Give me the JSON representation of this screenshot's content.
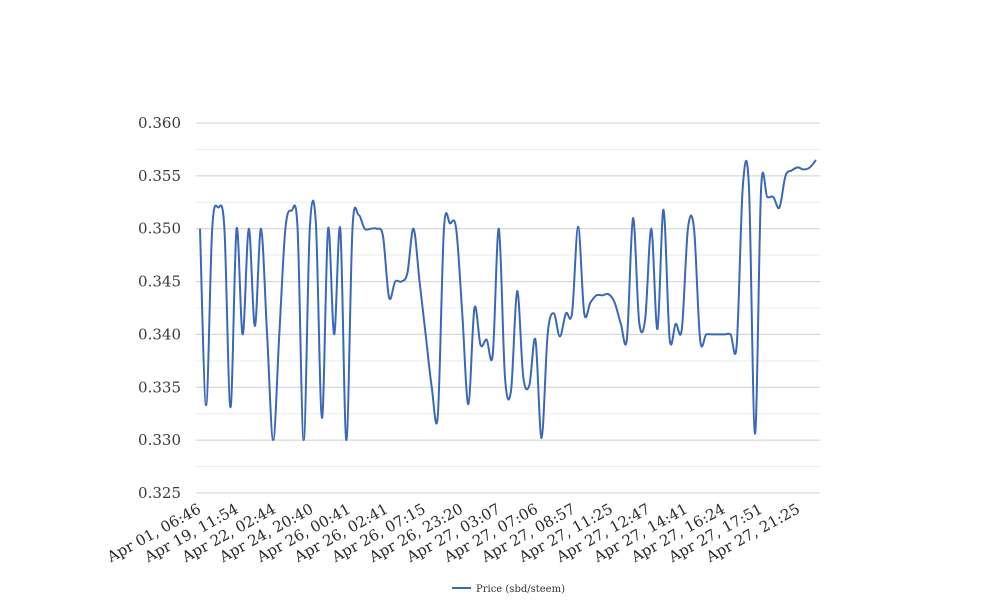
{
  "chart_data": {
    "type": "line",
    "title": "",
    "xlabel": "",
    "ylabel": "",
    "ylim": [
      0.325,
      0.36
    ],
    "y_ticks": [
      "0.325",
      "0.330",
      "0.335",
      "0.340",
      "0.345",
      "0.350",
      "0.355",
      "0.360"
    ],
    "grid": true,
    "legend_position": "bottom",
    "line_color": "#3a68b8",
    "x_tick_labels": [
      "Apr 01, 06:46",
      "Apr 19, 11:54",
      "Apr 22, 02:44",
      "Apr 24, 20:40",
      "Apr 26, 00:41",
      "Apr 26, 02:41",
      "Apr 26, 07:15",
      "Apr 26, 23:20",
      "Apr 27, 03:07",
      "Apr 27, 07:06",
      "Apr 27, 08:57",
      "Apr 27, 11:25",
      "Apr 27, 12:47",
      "Apr 27, 14:41",
      "Apr 27, 16:24",
      "Apr 27, 17:51",
      "Apr 27, 21:25"
    ],
    "series": [
      {
        "name": "Price (sbd/steem)",
        "values": [
          0.35,
          0.3333,
          0.35,
          0.352,
          0.35,
          0.3331,
          0.35,
          0.34,
          0.35,
          0.3408,
          0.35,
          0.34,
          0.33,
          0.34,
          0.35,
          0.3517,
          0.35,
          0.33,
          0.35,
          0.3505,
          0.3321,
          0.35,
          0.34,
          0.35,
          0.33,
          0.35,
          0.3513,
          0.35,
          0.35,
          0.35,
          0.3493,
          0.3435,
          0.345,
          0.345,
          0.3458,
          0.35,
          0.345,
          0.34,
          0.335,
          0.3324,
          0.35,
          0.3505,
          0.35,
          0.342,
          0.3334,
          0.3425,
          0.339,
          0.3395,
          0.3381,
          0.35,
          0.336,
          0.3347,
          0.3441,
          0.336,
          0.3352,
          0.3395,
          0.3302,
          0.34,
          0.342,
          0.3398,
          0.342,
          0.342,
          0.3502,
          0.342,
          0.343,
          0.3437,
          0.3437,
          0.3438,
          0.343,
          0.341,
          0.3396,
          0.351,
          0.3412,
          0.3415,
          0.35,
          0.3405,
          0.3518,
          0.3396,
          0.341,
          0.3405,
          0.35,
          0.35,
          0.3395,
          0.34,
          0.34,
          0.34,
          0.34,
          0.34,
          0.339,
          0.354,
          0.354,
          0.3306,
          0.3538,
          0.353,
          0.353,
          0.352,
          0.355,
          0.3555,
          0.3558,
          0.3556,
          0.3558,
          0.3565
        ]
      }
    ]
  }
}
